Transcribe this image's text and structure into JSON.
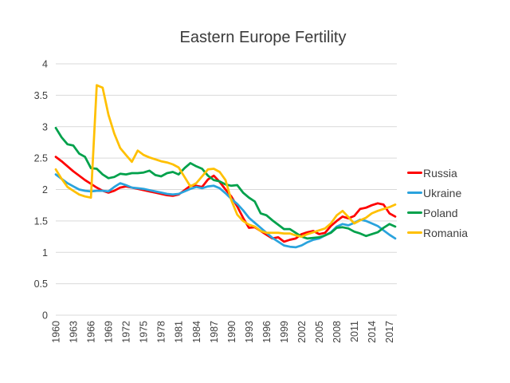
{
  "chart_data": {
    "type": "line",
    "title": "Eastern Europe Fertility",
    "xlabel": "",
    "ylabel": "",
    "year_start": 1960,
    "year_end": 2018,
    "ylim": [
      0,
      4
    ],
    "y_ticks": [
      0,
      0.5,
      1,
      1.5,
      2,
      2.5,
      3,
      3.5,
      4
    ],
    "y_tick_labels": [
      "0",
      "0.5",
      "1",
      "1.5",
      "2",
      "2.5",
      "3",
      "3.5",
      "4"
    ],
    "x_tick_labels": [
      "1960",
      "1963",
      "1966",
      "1969",
      "1972",
      "1975",
      "1978",
      "1981",
      "1984",
      "1987",
      "1990",
      "1993",
      "1996",
      "1999",
      "2002",
      "2005",
      "2008",
      "2011",
      "2014",
      "2017"
    ],
    "grid": "horizontal",
    "legend_position": "right",
    "series": [
      {
        "name": "Russia",
        "color": "#fe0000",
        "values": [
          2.52,
          2.45,
          2.37,
          2.29,
          2.22,
          2.15,
          2.09,
          2.03,
          1.98,
          1.95,
          1.98,
          2.03,
          2.05,
          2.03,
          2.01,
          1.99,
          1.97,
          1.95,
          1.93,
          1.91,
          1.9,
          1.92,
          1.99,
          2.06,
          2.06,
          2.04,
          2.16,
          2.22,
          2.12,
          2.0,
          1.89,
          1.73,
          1.55,
          1.39,
          1.4,
          1.34,
          1.28,
          1.22,
          1.24,
          1.17,
          1.2,
          1.22,
          1.29,
          1.32,
          1.34,
          1.29,
          1.31,
          1.42,
          1.5,
          1.57,
          1.54,
          1.58,
          1.69,
          1.71,
          1.75,
          1.78,
          1.76,
          1.62,
          1.57
        ]
      },
      {
        "name": "Ukraine",
        "color": "#2aa3dd",
        "values": [
          2.24,
          2.17,
          2.1,
          2.05,
          2.0,
          1.98,
          1.97,
          1.98,
          1.98,
          1.97,
          2.04,
          2.1,
          2.07,
          2.03,
          2.02,
          2.01,
          1.99,
          1.97,
          1.95,
          1.93,
          1.92,
          1.93,
          1.97,
          2.01,
          2.04,
          2.02,
          2.05,
          2.06,
          2.02,
          1.94,
          1.85,
          1.77,
          1.67,
          1.55,
          1.47,
          1.39,
          1.31,
          1.23,
          1.17,
          1.11,
          1.09,
          1.08,
          1.11,
          1.16,
          1.2,
          1.22,
          1.27,
          1.32,
          1.41,
          1.45,
          1.43,
          1.47,
          1.52,
          1.5,
          1.46,
          1.42,
          1.35,
          1.28,
          1.22
        ]
      },
      {
        "name": "Poland",
        "color": "#00a14b",
        "values": [
          2.98,
          2.83,
          2.72,
          2.7,
          2.57,
          2.52,
          2.34,
          2.33,
          2.24,
          2.18,
          2.2,
          2.25,
          2.24,
          2.26,
          2.26,
          2.27,
          2.3,
          2.23,
          2.21,
          2.26,
          2.28,
          2.24,
          2.34,
          2.42,
          2.37,
          2.33,
          2.22,
          2.15,
          2.13,
          2.08,
          2.06,
          2.07,
          1.95,
          1.87,
          1.81,
          1.62,
          1.59,
          1.51,
          1.44,
          1.37,
          1.37,
          1.31,
          1.25,
          1.22,
          1.23,
          1.24,
          1.27,
          1.31,
          1.39,
          1.4,
          1.38,
          1.33,
          1.3,
          1.26,
          1.29,
          1.32,
          1.39,
          1.45,
          1.41
        ]
      },
      {
        "name": "Romania",
        "color": "#ffc000",
        "values": [
          2.32,
          2.17,
          2.04,
          1.98,
          1.92,
          1.89,
          1.87,
          3.66,
          3.62,
          3.19,
          2.89,
          2.66,
          2.55,
          2.44,
          2.62,
          2.55,
          2.51,
          2.48,
          2.45,
          2.43,
          2.4,
          2.35,
          2.2,
          2.05,
          2.1,
          2.21,
          2.32,
          2.33,
          2.28,
          2.15,
          1.83,
          1.6,
          1.5,
          1.44,
          1.41,
          1.34,
          1.31,
          1.31,
          1.31,
          1.3,
          1.3,
          1.27,
          1.25,
          1.29,
          1.32,
          1.35,
          1.38,
          1.46,
          1.59,
          1.66,
          1.56,
          1.46,
          1.51,
          1.55,
          1.62,
          1.66,
          1.69,
          1.72,
          1.76
        ]
      }
    ],
    "style": {
      "grid_color": "#d9d9d9",
      "axis_text_color": "#3f3f3f",
      "title_color": "#3a3a3a",
      "line_width": 2.75
    }
  }
}
